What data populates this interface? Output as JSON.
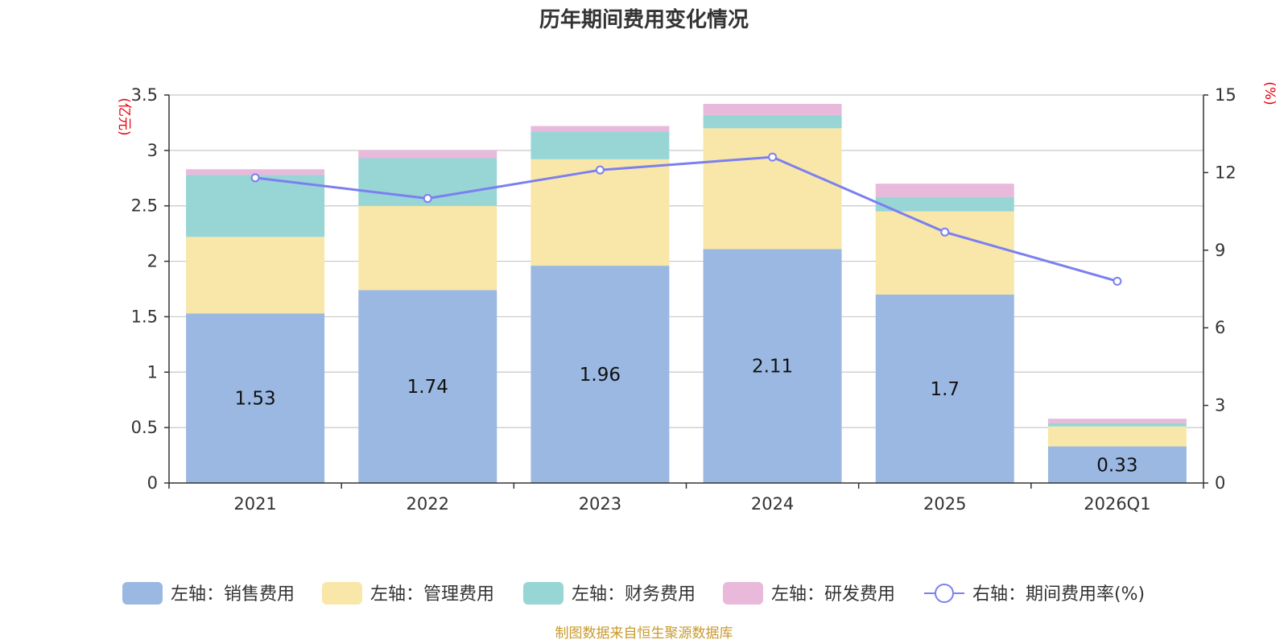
{
  "chart_data": {
    "type": "bar",
    "title": "历年期间费用变化情况",
    "categories": [
      "2021",
      "2022",
      "2023",
      "2024",
      "2025",
      "2026Q1"
    ],
    "left_axis": {
      "unit": "(亿元)",
      "ylim": [
        0,
        3.5
      ],
      "ticks": [
        "0",
        "0.5",
        "1",
        "1.5",
        "2",
        "2.5",
        "3",
        "3.5"
      ]
    },
    "right_axis": {
      "unit": "(%)",
      "ylim": [
        0,
        15
      ],
      "ticks": [
        "0",
        "3",
        "6",
        "9",
        "12",
        "15"
      ]
    },
    "series": [
      {
        "name": "左轴：销售费用",
        "type": "bar",
        "color": "#9bb8e2",
        "values": [
          1.53,
          1.74,
          1.96,
          2.11,
          1.7,
          0.33
        ],
        "labels": [
          "1.53",
          "1.74",
          "1.96",
          "2.11",
          "1.7",
          "0.33"
        ]
      },
      {
        "name": "左轴：管理费用",
        "type": "bar",
        "color": "#f8e7a8",
        "values": [
          0.69,
          0.76,
          0.96,
          1.09,
          0.75,
          0.18
        ]
      },
      {
        "name": "左轴：财务费用",
        "type": "bar",
        "color": "#98d5d5",
        "values": [
          0.56,
          0.43,
          0.25,
          0.12,
          0.13,
          0.03
        ]
      },
      {
        "name": "左轴：研发费用",
        "type": "bar",
        "color": "#e8b9da",
        "values": [
          0.05,
          0.07,
          0.05,
          0.1,
          0.12,
          0.04
        ]
      },
      {
        "name": "右轴：期间费用率(%)",
        "type": "line",
        "axis": "right",
        "color": "#7b7ff0",
        "values": [
          11.8,
          11.0,
          12.1,
          12.6,
          9.7,
          7.8
        ]
      }
    ],
    "source": "制图数据来自恒生聚源数据库"
  }
}
